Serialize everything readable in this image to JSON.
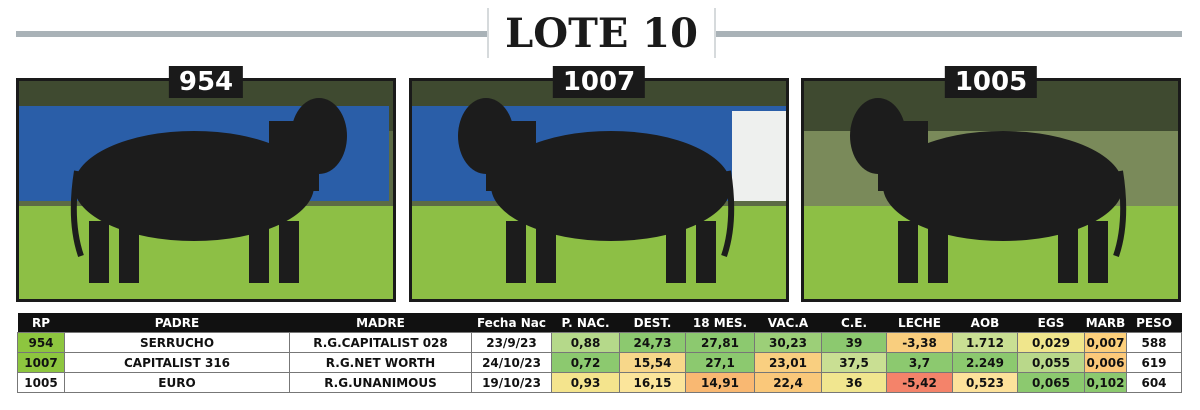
{
  "header": {
    "title": "LOTE 10"
  },
  "photos": [
    {
      "label": "954"
    },
    {
      "label": "1007"
    },
    {
      "label": "1005"
    }
  ],
  "table": {
    "columns": [
      "RP",
      "PADRE",
      "MADRE",
      "Fecha Nac",
      "P. NAC.",
      "DEST.",
      "18 MES.",
      "VAC.A",
      "C.E.",
      "LECHE",
      "AOB",
      "EGS",
      "MARB",
      "PESO"
    ],
    "rows": [
      [
        "954",
        "SERRUCHO",
        "R.G.CAPITALIST 028",
        "23/9/23",
        "0,88",
        "24,73",
        "27,81",
        "30,23",
        "39",
        "-3,38",
        "1.712",
        "0,029",
        "0,007",
        "588"
      ],
      [
        "1007",
        "CAPITALIST 316",
        "R.G.NET WORTH",
        "24/10/23",
        "0,72",
        "15,54",
        "27,1",
        "23,01",
        "37,5",
        "3,7",
        "2.249",
        "0,055",
        "0,006",
        "619"
      ],
      [
        "1005",
        "EURO",
        "R.G.UNANIMOUS",
        "19/10/23",
        "0,93",
        "16,15",
        "14,91",
        "22,4",
        "36",
        "-5,42",
        "0,523",
        "0,065",
        "0,102",
        "604"
      ]
    ]
  }
}
